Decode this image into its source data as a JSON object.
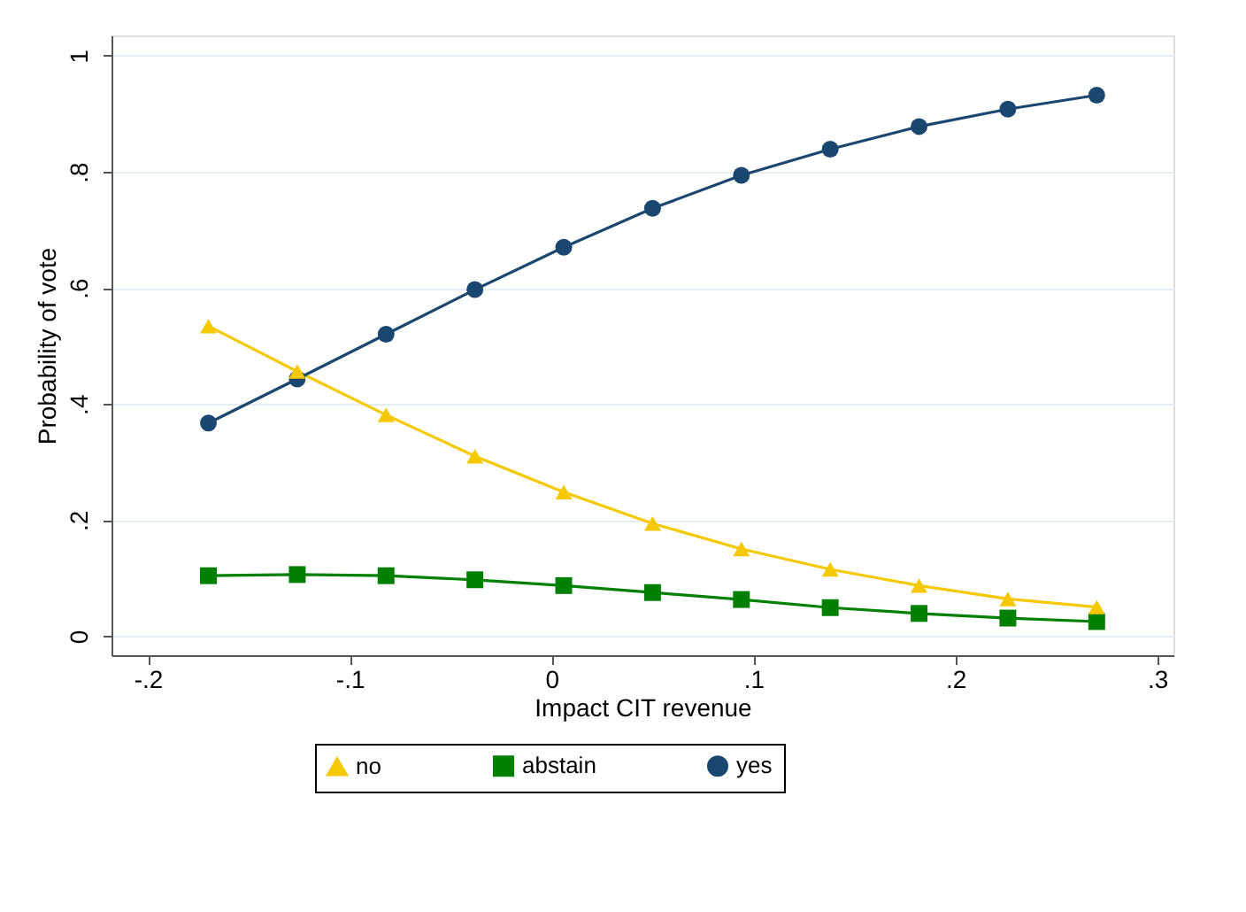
{
  "chart_data": {
    "type": "line",
    "xlabel": "Impact CIT revenue",
    "ylabel": "Probability of vote",
    "x": [
      -0.17,
      -0.126,
      -0.082,
      -0.038,
      0.006,
      0.05,
      0.094,
      0.138,
      0.182,
      0.226,
      0.27
    ],
    "series": [
      {
        "name": "no",
        "color": "#f5c800",
        "marker": "triangle",
        "values": [
          0.534,
          0.456,
          0.381,
          0.31,
          0.248,
          0.194,
          0.15,
          0.115,
          0.087,
          0.064,
          0.05
        ]
      },
      {
        "name": "abstain",
        "color": "#008000",
        "marker": "square",
        "values": [
          0.104,
          0.106,
          0.104,
          0.097,
          0.087,
          0.075,
          0.063,
          0.049,
          0.039,
          0.031,
          0.025
        ]
      },
      {
        "name": "yes",
        "color": "#1a476f",
        "marker": "circle",
        "values": [
          0.367,
          0.443,
          0.52,
          0.597,
          0.67,
          0.737,
          0.794,
          0.839,
          0.878,
          0.908,
          0.932
        ]
      }
    ],
    "xlim": [
      -0.218,
      0.308
    ],
    "xticks": [
      {
        "value": -0.2,
        "label": "-.2"
      },
      {
        "value": -0.1,
        "label": "-.1"
      },
      0,
      {
        "value": 0.1,
        "label": ".1"
      },
      {
        "value": 0.2,
        "label": ".2"
      },
      {
        "value": 0.3,
        "label": ".3"
      }
    ],
    "ylim": [
      -0.033,
      1.035
    ],
    "yticks": [
      0,
      {
        "value": 0.2,
        "label": ".2"
      },
      {
        "value": 0.4,
        "label": ".4"
      },
      {
        "value": 0.6,
        "label": ".6"
      },
      {
        "value": 0.8,
        "label": ".8"
      },
      1
    ],
    "grid": "y",
    "legend": "bottom",
    "line_style": "solid"
  }
}
